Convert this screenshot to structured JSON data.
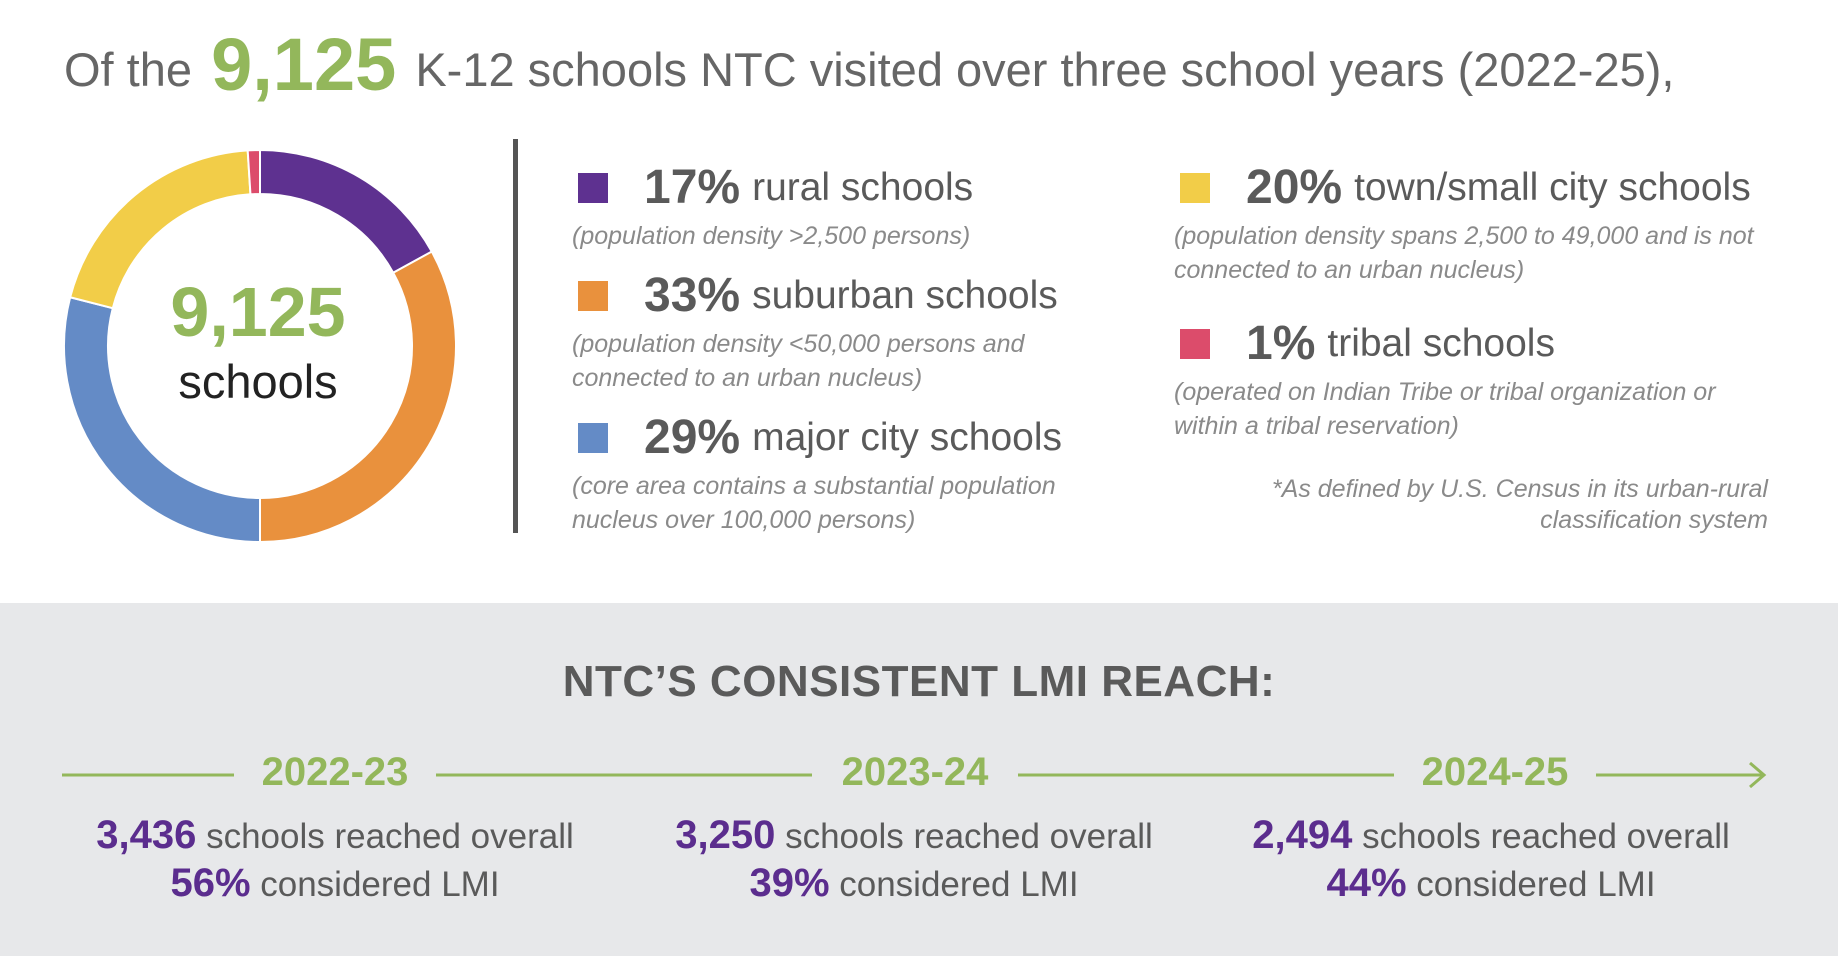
{
  "headline": {
    "prefix": "Of the",
    "number": "9,125",
    "suffix": "K-12 schools NTC visited over three school years (2022-25),"
  },
  "center": {
    "number": "9,125",
    "label": "schools"
  },
  "chart_data": {
    "type": "pie",
    "donut": true,
    "total": 9125,
    "slices": [
      {
        "pct": "17%",
        "value": 17,
        "name": "rural schools",
        "desc": "(population density >2,500 persons)",
        "color": "#5e3190"
      },
      {
        "pct": "33%",
        "value": 33,
        "name": "suburban schools",
        "desc": "(population density <50,000 persons and connected to an urban nucleus)",
        "color": "#e9913d"
      },
      {
        "pct": "29%",
        "value": 29,
        "name": "major city schools",
        "desc": "(core area contains a substantial population nucleus over 100,000 persons)",
        "color": "#648bc6"
      },
      {
        "pct": "20%",
        "value": 20,
        "name": "town/small city schools",
        "desc": "(population density spans 2,500 to 49,000 and is not connected to an urban nucleus)",
        "color": "#f2cd48"
      },
      {
        "pct": "1%",
        "value": 1,
        "name": "tribal schools",
        "desc": "(operated on Indian Tribe or tribal organization or within a tribal reservation)",
        "color": "#dc4c6b"
      }
    ]
  },
  "footnote": "*As defined by U.S. Census in its urban-rural classification system",
  "lmi": {
    "title": "NTC’S CONSISTENT LMI REACH:",
    "years": [
      {
        "year": "2022-23",
        "schools": "3,436",
        "schools_text": "schools reached overall",
        "lmi": "56%",
        "lmi_text": "considered LMI"
      },
      {
        "year": "2023-24",
        "schools": "3,250",
        "schools_text": "schools reached overall",
        "lmi": "39%",
        "lmi_text": "considered LMI"
      },
      {
        "year": "2024-25",
        "schools": "2,494",
        "schools_text": "schools reached overall",
        "lmi": "44%",
        "lmi_text": "considered LMI"
      }
    ]
  },
  "colors": {
    "green": "#93b75b",
    "purple": "#5b2d8e",
    "gray_text": "#5a5a5a",
    "band": "#e7e8ea"
  }
}
